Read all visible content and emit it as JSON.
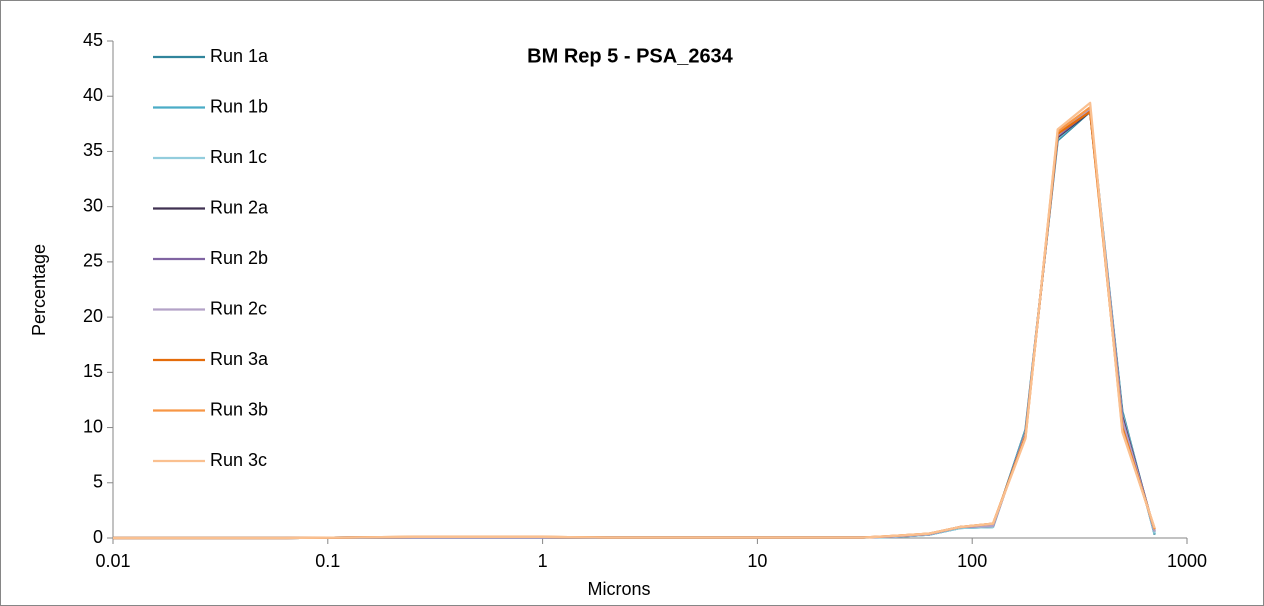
{
  "chart_data": {
    "type": "line",
    "title": "BM Rep 5 - PSA_2634",
    "x_label": "Microns",
    "y_label": "Percentage",
    "x_scale": "log",
    "xlim": [
      0.01,
      1000
    ],
    "xticks": [
      0.01,
      0.1,
      1,
      10,
      100,
      1000
    ],
    "ylim": [
      0,
      45
    ],
    "yticks": [
      0,
      5,
      10,
      15,
      20,
      25,
      30,
      35,
      40,
      45
    ],
    "grid": false,
    "legend": "upper left",
    "x": [
      0.01,
      0.02,
      0.04,
      0.063,
      0.125,
      0.25,
      0.5,
      1,
      2,
      4,
      8,
      16,
      31,
      44,
      63,
      88,
      125,
      177,
      250,
      354,
      500,
      707
    ],
    "series": [
      {
        "name": "Run 1a",
        "color": "#31859c",
        "values": [
          0,
          0,
          0,
          0,
          0.05,
          0.05,
          0.05,
          0.05,
          0.05,
          0.05,
          0.05,
          0.05,
          0.05,
          0.1,
          0.3,
          0.9,
          1.0,
          9.8,
          36.0,
          38.6,
          11.5,
          0.3
        ]
      },
      {
        "name": "Run 1b",
        "color": "#4bacc6",
        "values": [
          0,
          0,
          0,
          0,
          0.05,
          0.05,
          0.05,
          0.05,
          0.05,
          0.05,
          0.05,
          0.05,
          0.05,
          0.1,
          0.3,
          0.9,
          1.0,
          9.7,
          36.1,
          38.7,
          11.3,
          0.4
        ]
      },
      {
        "name": "Run 1c",
        "color": "#93cddd",
        "values": [
          0,
          0,
          0,
          0,
          0.05,
          0.05,
          0.05,
          0.05,
          0.05,
          0.05,
          0.05,
          0.05,
          0.05,
          0.1,
          0.3,
          0.9,
          1.0,
          9.6,
          36.2,
          38.8,
          11.2,
          0.4
        ]
      },
      {
        "name": "Run 2a",
        "color": "#403152",
        "values": [
          0,
          0,
          0,
          0,
          0.05,
          0.05,
          0.05,
          0.05,
          0.05,
          0.05,
          0.05,
          0.05,
          0.05,
          0.15,
          0.35,
          1.0,
          1.1,
          9.5,
          36.3,
          38.6,
          11.0,
          0.6
        ]
      },
      {
        "name": "Run 2b",
        "color": "#8064a2",
        "values": [
          0,
          0,
          0,
          0,
          0.05,
          0.05,
          0.05,
          0.05,
          0.05,
          0.05,
          0.05,
          0.05,
          0.05,
          0.15,
          0.35,
          1.0,
          1.1,
          9.4,
          36.4,
          38.7,
          10.8,
          0.6
        ]
      },
      {
        "name": "Run 2c",
        "color": "#b3a2c7",
        "values": [
          0,
          0,
          0,
          0,
          0.05,
          0.05,
          0.05,
          0.05,
          0.05,
          0.05,
          0.05,
          0.05,
          0.05,
          0.15,
          0.35,
          1.0,
          1.1,
          9.4,
          36.5,
          38.9,
          10.6,
          0.6
        ]
      },
      {
        "name": "Run 3a",
        "color": "#e46c0a",
        "values": [
          0,
          0,
          0,
          0,
          0.05,
          0.1,
          0.1,
          0.1,
          0.05,
          0.05,
          0.05,
          0.05,
          0.05,
          0.2,
          0.4,
          1.0,
          1.3,
          9.2,
          36.6,
          38.6,
          10.0,
          0.8
        ]
      },
      {
        "name": "Run 3b",
        "color": "#f79646",
        "values": [
          0,
          0,
          0,
          0,
          0.05,
          0.1,
          0.1,
          0.1,
          0.05,
          0.05,
          0.05,
          0.05,
          0.05,
          0.2,
          0.4,
          1.0,
          1.3,
          9.1,
          36.8,
          39.0,
          9.8,
          0.8
        ]
      },
      {
        "name": "Run 3c",
        "color": "#fac090",
        "values": [
          0,
          0,
          0,
          0,
          0.05,
          0.1,
          0.1,
          0.1,
          0.05,
          0.05,
          0.05,
          0.05,
          0.05,
          0.2,
          0.4,
          1.0,
          1.3,
          9.0,
          37.0,
          39.4,
          9.6,
          0.9
        ]
      }
    ]
  }
}
